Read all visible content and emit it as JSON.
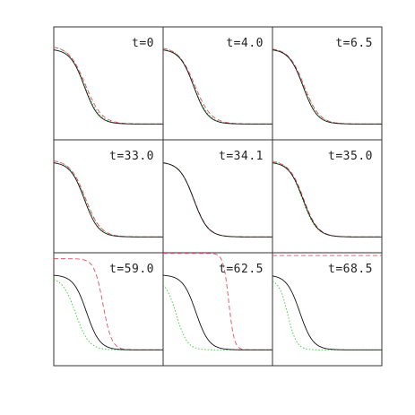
{
  "chart_data": {
    "type": "line",
    "layout": "3x3 grid",
    "grid": false,
    "series_styles": [
      {
        "key": "solid",
        "style": "solid",
        "color": "#111111"
      },
      {
        "key": "dashed",
        "style": "dashed",
        "color": "#e0506a"
      },
      {
        "key": "dotted",
        "style": "dotted",
        "color": "#33cc33"
      }
    ],
    "ylim": [
      0,
      1
    ],
    "xlim": [
      0,
      1
    ],
    "panels": [
      {
        "label": "t=0",
        "curves": {
          "solid": {
            "x0": 0.28,
            "w": 0.065,
            "amp": 0.7
          },
          "dashed": {
            "x0": 0.29,
            "w": 0.075,
            "amp": 0.73
          },
          "dotted": {
            "x0": 0.28,
            "w": 0.07,
            "amp": 0.73
          }
        }
      },
      {
        "label": "t=4.0",
        "curves": {
          "solid": {
            "x0": 0.28,
            "w": 0.065,
            "amp": 0.7
          },
          "dashed": {
            "x0": 0.29,
            "w": 0.075,
            "amp": 0.72
          },
          "dotted": {
            "x0": 0.28,
            "w": 0.07,
            "amp": 0.72
          }
        }
      },
      {
        "label": "t=6.5",
        "curves": {
          "solid": {
            "x0": 0.28,
            "w": 0.065,
            "amp": 0.7
          },
          "dashed": {
            "x0": 0.29,
            "w": 0.07,
            "amp": 0.71
          },
          "dotted": {
            "x0": 0.285,
            "w": 0.07,
            "amp": 0.71
          }
        }
      },
      {
        "label": "t=33.0",
        "curves": {
          "solid": {
            "x0": 0.28,
            "w": 0.065,
            "amp": 0.7
          },
          "dashed": {
            "x0": 0.29,
            "w": 0.07,
            "amp": 0.72
          },
          "dotted": {
            "x0": 0.285,
            "w": 0.07,
            "amp": 0.72
          }
        }
      },
      {
        "label": "t=34.1",
        "curves": {
          "solid": {
            "x0": 0.28,
            "w": 0.065,
            "amp": 0.7
          },
          "dashed": {
            "x0": 0.282,
            "w": 0.066,
            "amp": 0.7
          },
          "dotted": {
            "x0": 0.28,
            "w": 0.066,
            "amp": 0.7
          }
        }
      },
      {
        "label": "t=35.0",
        "curves": {
          "solid": {
            "x0": 0.28,
            "w": 0.065,
            "amp": 0.7
          },
          "dashed": {
            "x0": 0.285,
            "w": 0.066,
            "amp": 0.71
          },
          "dotted": {
            "x0": 0.27,
            "w": 0.066,
            "amp": 0.72
          }
        }
      },
      {
        "label": "t=59.0",
        "curves": {
          "solid": {
            "x0": 0.3,
            "w": 0.06,
            "amp": 0.7
          },
          "dashed": {
            "x0": 0.45,
            "w": 0.04,
            "amp": 0.85
          },
          "dotted": {
            "x0": 0.2,
            "w": 0.06,
            "amp": 0.68
          }
        }
      },
      {
        "label": "t=62.5",
        "curves": {
          "solid": {
            "x0": 0.3,
            "w": 0.06,
            "amp": 0.7
          },
          "dashed": {
            "x0": 0.6,
            "w": 0.025,
            "amp": 0.9
          },
          "dotted": {
            "x0": 0.12,
            "w": 0.05,
            "amp": 0.66
          }
        }
      },
      {
        "label": "t=68.5",
        "curves": {
          "solid": {
            "x0": 0.25,
            "w": 0.06,
            "amp": 0.7
          },
          "dashed": {
            "x0": 1.2,
            "w": 0.02,
            "amp": 0.88
          },
          "dotted": {
            "x0": 0.14,
            "w": 0.04,
            "amp": 0.66
          }
        }
      }
    ]
  }
}
